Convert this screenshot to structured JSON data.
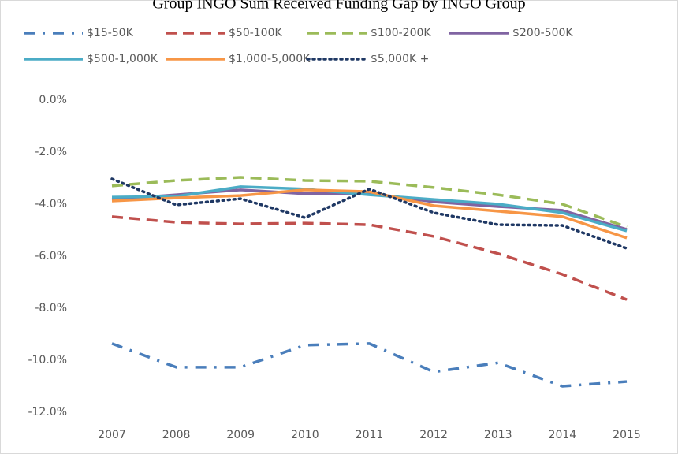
{
  "chart_data": {
    "type": "line",
    "title": "Group INGO Sum Received Funding Gap by INGO Group",
    "categories": [
      "2007",
      "2008",
      "2009",
      "2010",
      "2011",
      "2012",
      "2013",
      "2014",
      "2015"
    ],
    "series": [
      {
        "name": "$15-50K",
        "color": "#4a7ebb",
        "dash": "dashdot",
        "values": [
          -9.36,
          -10.27,
          -10.27,
          -9.42,
          -9.36,
          -10.45,
          -10.1,
          -11.0,
          -10.82
        ]
      },
      {
        "name": "$50-100K",
        "color": "#c0504d",
        "dash": "dash",
        "values": [
          -4.48,
          -4.7,
          -4.76,
          -4.73,
          -4.79,
          -5.24,
          -5.9,
          -6.7,
          -7.67
        ]
      },
      {
        "name": "$100-200K",
        "color": "#9bbb59",
        "dash": "dash",
        "values": [
          -3.3,
          -3.09,
          -2.97,
          -3.09,
          -3.12,
          -3.36,
          -3.64,
          -4.0,
          -4.88
        ]
      },
      {
        "name": "$200-500K",
        "color": "#8064a2",
        "dash": "solid",
        "values": [
          -3.82,
          -3.64,
          -3.45,
          -3.6,
          -3.58,
          -3.91,
          -4.09,
          -4.24,
          -4.97
        ]
      },
      {
        "name": "$500-1,000K",
        "color": "#4bacc6",
        "dash": "solid",
        "values": [
          -3.73,
          -3.7,
          -3.33,
          -3.42,
          -3.64,
          -3.82,
          -4.0,
          -4.33,
          -5.03
        ]
      },
      {
        "name": "$1,000-5,000K",
        "color": "#f79646",
        "dash": "solid",
        "values": [
          -3.88,
          -3.76,
          -3.67,
          -3.45,
          -3.52,
          -4.06,
          -4.27,
          -4.48,
          -5.3
        ]
      },
      {
        "name": "$5,000K +",
        "color": "#1f3864",
        "dash": "dot",
        "values": [
          -3.03,
          -4.03,
          -3.79,
          -4.52,
          -3.42,
          -4.33,
          -4.79,
          -4.82,
          -5.7
        ]
      }
    ],
    "ylim": [
      -12,
      0
    ],
    "yticks": [
      {
        "value": 0,
        "label": "0.0%"
      },
      {
        "value": -2,
        "label": "-2.0%"
      },
      {
        "value": -4,
        "label": "-4.0%"
      },
      {
        "value": -6,
        "label": "-6.0%"
      },
      {
        "value": -8,
        "label": "-8.0%"
      },
      {
        "value": -10,
        "label": "-10.0%"
      },
      {
        "value": -12,
        "label": "-12.0%"
      }
    ],
    "grid": false
  }
}
